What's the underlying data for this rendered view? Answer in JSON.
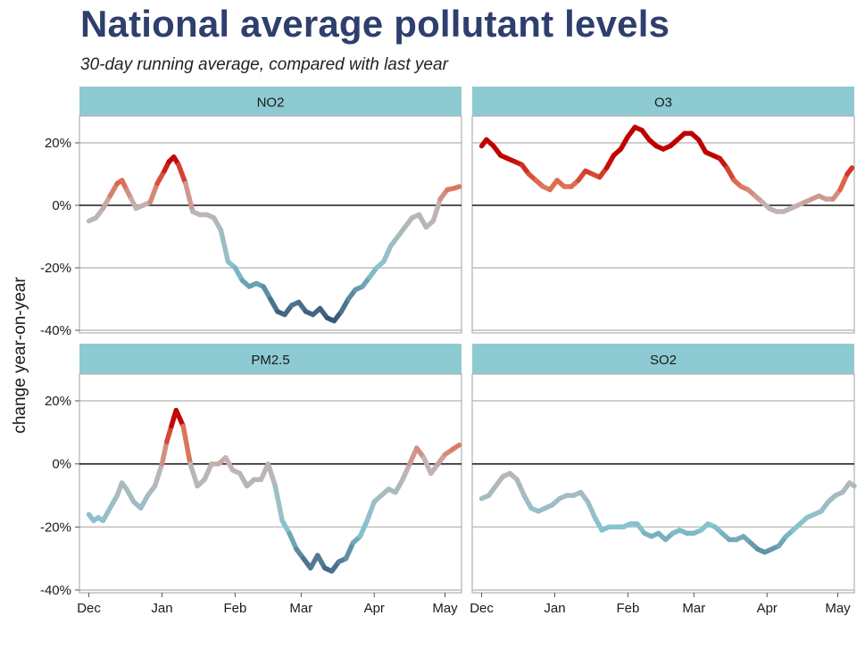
{
  "header": {
    "title": "National average pollutant levels",
    "subtitle": "30-day running average, compared with last year"
  },
  "chart_data": {
    "type": "line",
    "layout": "facet-grid-2x2",
    "ylabel": "change year-on-year",
    "xlabel": "",
    "ylim": [
      -40,
      28
    ],
    "yticks": [
      20,
      0,
      -20,
      -40
    ],
    "ytick_labels": [
      "20%",
      "0%",
      "-20%",
      "-40%"
    ],
    "xticks": [
      "Dec",
      "Jan",
      "Feb",
      "Mar",
      "Apr",
      "May"
    ],
    "xlim_days": [
      -4,
      158
    ],
    "xtick_days": [
      0,
      31,
      62,
      90,
      121,
      151
    ],
    "grid": "horizontal",
    "zero_line": true,
    "strip_color": "#8ecad1",
    "color_scale": {
      "negative": "#2f4a6e",
      "mid_negative": "#85c4cf",
      "zero": "#c4b3b3",
      "mid_positive": "#e06a4e",
      "positive": "#c00000"
    },
    "panels": [
      {
        "name": "NO2",
        "x": [
          0,
          3,
          6,
          9,
          12,
          14,
          16,
          18,
          20,
          23,
          26,
          29,
          32,
          34,
          36,
          38,
          41,
          44,
          47,
          50,
          53,
          56,
          59,
          62,
          65,
          68,
          71,
          74,
          77,
          80,
          83,
          86,
          89,
          92,
          95,
          98,
          101,
          104,
          107,
          110,
          113,
          116,
          119,
          122,
          125,
          128,
          131,
          134,
          137,
          140,
          143,
          146,
          149,
          152,
          155,
          157
        ],
        "y": [
          -5,
          -4,
          -1,
          3,
          7,
          8,
          5,
          2,
          -1,
          0,
          1,
          7,
          11,
          14,
          15.5,
          13,
          7,
          -2,
          -3,
          -3,
          -4,
          -8,
          -18,
          -20,
          -24,
          -26,
          -25,
          -26,
          -30,
          -34,
          -35,
          -32,
          -31,
          -34,
          -35,
          -33,
          -36,
          -37,
          -34,
          -30,
          -27,
          -26,
          -23,
          -20,
          -18,
          -13,
          -10,
          -7,
          -4,
          -3,
          -7,
          -5,
          2,
          5,
          5.5,
          6
        ]
      },
      {
        "name": "O3",
        "x": [
          0,
          2,
          5,
          8,
          11,
          14,
          17,
          20,
          23,
          26,
          29,
          32,
          35,
          38,
          41,
          44,
          47,
          50,
          53,
          56,
          59,
          62,
          65,
          68,
          71,
          74,
          77,
          80,
          83,
          86,
          89,
          92,
          95,
          98,
          101,
          104,
          107,
          110,
          113,
          116,
          119,
          122,
          125,
          128,
          131,
          134,
          137,
          140,
          143,
          146,
          149,
          152,
          155,
          157
        ],
        "y": [
          19,
          21,
          19,
          16,
          15,
          14,
          13,
          10,
          8,
          6,
          5,
          8,
          6,
          6,
          8,
          11,
          10,
          9,
          12,
          16,
          18,
          22,
          25,
          24,
          21,
          19,
          18,
          19,
          21,
          23,
          23,
          21,
          17,
          16,
          15,
          12,
          8,
          6,
          5,
          3,
          1,
          -1,
          -2,
          -2,
          -1,
          0,
          1,
          2,
          3,
          2,
          2,
          5,
          10,
          12
        ]
      },
      {
        "name": "PM2.5",
        "x": [
          0,
          2,
          4,
          6,
          9,
          12,
          14,
          16,
          19,
          22,
          25,
          28,
          31,
          33,
          35,
          37,
          40,
          43,
          46,
          49,
          52,
          55,
          58,
          61,
          64,
          67,
          70,
          73,
          76,
          79,
          82,
          85,
          88,
          91,
          94,
          97,
          100,
          103,
          106,
          109,
          112,
          115,
          118,
          121,
          124,
          127,
          130,
          133,
          136,
          139,
          142,
          145,
          148,
          151,
          154,
          157
        ],
        "y": [
          -16,
          -18,
          -17,
          -18,
          -14,
          -10,
          -6,
          -8,
          -12,
          -14,
          -10,
          -7,
          0,
          7,
          12,
          17,
          12,
          0,
          -7,
          -5,
          0,
          0,
          2,
          -2,
          -3,
          -7,
          -5,
          -5,
          0,
          -7,
          -18,
          -22,
          -27,
          -30,
          -33,
          -29,
          -33,
          -34,
          -31,
          -30,
          -25,
          -23,
          -18,
          -12,
          -10,
          -8,
          -9,
          -5,
          0,
          5,
          2,
          -3,
          0,
          3,
          4.5,
          6
        ]
      },
      {
        "name": "SO2",
        "x": [
          0,
          3,
          6,
          9,
          12,
          15,
          18,
          21,
          24,
          27,
          30,
          33,
          36,
          39,
          42,
          45,
          48,
          51,
          54,
          57,
          60,
          63,
          66,
          69,
          72,
          75,
          78,
          81,
          84,
          87,
          90,
          93,
          96,
          99,
          102,
          105,
          108,
          111,
          114,
          117,
          120,
          123,
          126,
          129,
          132,
          135,
          138,
          141,
          144,
          147,
          150,
          153,
          156,
          158
        ],
        "y": [
          -11,
          -10,
          -7,
          -4,
          -3,
          -5,
          -10,
          -14,
          -15,
          -14,
          -13,
          -11,
          -10,
          -10,
          -9,
          -12,
          -17,
          -21,
          -20,
          -20,
          -20,
          -19,
          -19,
          -22,
          -23,
          -22,
          -24,
          -22,
          -21,
          -22,
          -22,
          -21,
          -19,
          -20,
          -22,
          -24,
          -24,
          -23,
          -25,
          -27,
          -28,
          -27,
          -26,
          -23,
          -21,
          -19,
          -17,
          -16,
          -15,
          -12,
          -10,
          -9,
          -6,
          -7
        ]
      }
    ]
  }
}
